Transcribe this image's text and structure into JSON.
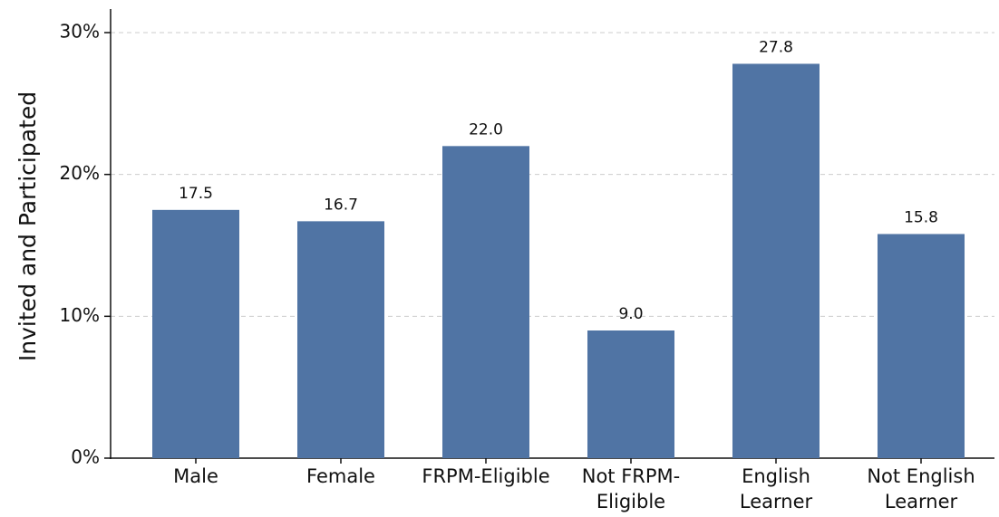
{
  "chart_data": {
    "type": "bar",
    "y_label": "Invited and Participated",
    "categories": [
      "Male",
      "Female",
      "FRPM-Eligible",
      "Not FRPM-\nEligible",
      "English\nLearner",
      "Not English\nLearner"
    ],
    "values": [
      17.5,
      16.7,
      22.0,
      9.0,
      27.8,
      15.8
    ],
    "value_labels": [
      "17.5",
      "16.7",
      "22.0",
      "9.0",
      "27.8",
      "15.8"
    ],
    "color": "#5074a4",
    "ylim": [
      0,
      30
    ],
    "yticks": [
      {
        "value": 0,
        "label": "0%"
      },
      {
        "value": 10,
        "label": "10%"
      },
      {
        "value": 20,
        "label": "20%"
      },
      {
        "value": 30,
        "label": "30%"
      }
    ],
    "grid": true
  }
}
